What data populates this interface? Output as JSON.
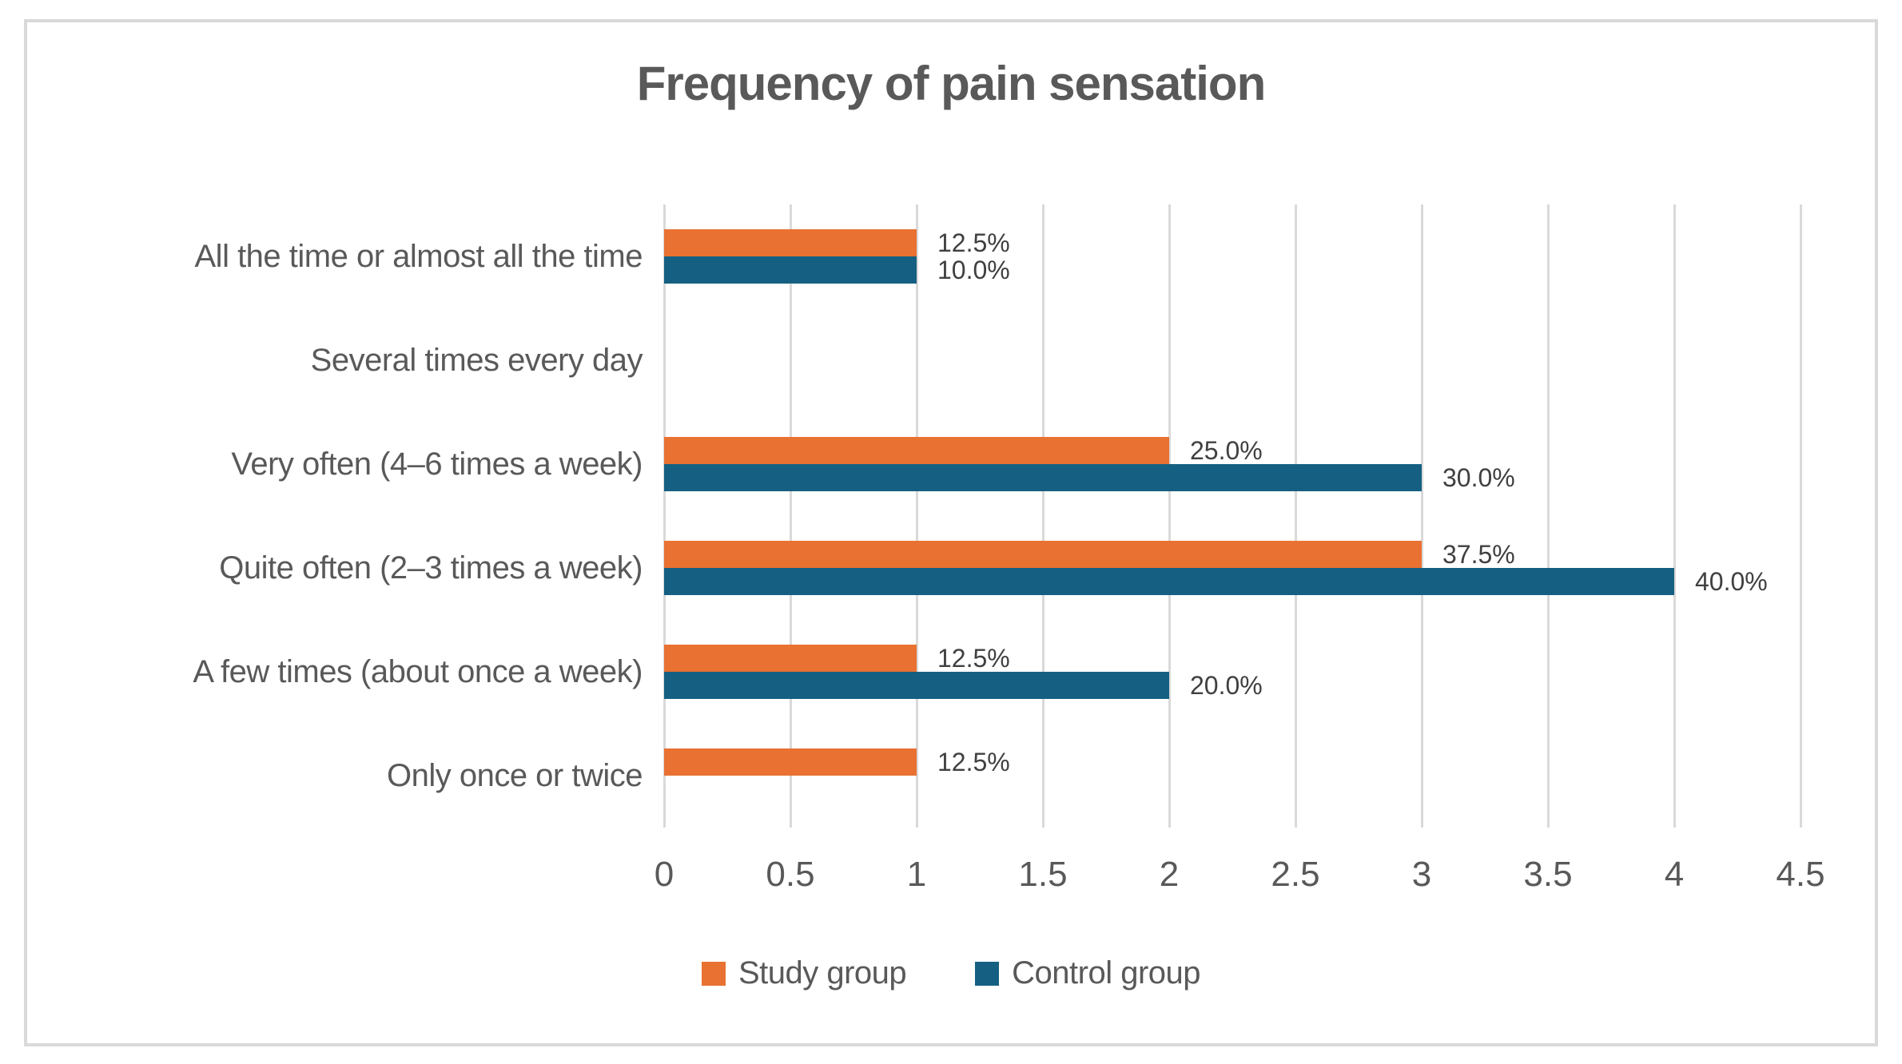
{
  "chart_data": {
    "type": "bar",
    "orientation": "horizontal",
    "title": "Frequency of pain sensation",
    "categories": [
      "All the time or almost all the time",
      "Several times every day",
      "Very often (4–6 times a week)",
      "Quite often (2–3 times a week)",
      "A few times (about once a week)",
      "Only once or twice"
    ],
    "series": [
      {
        "name": "Study group",
        "color": "#E97132",
        "values": [
          1,
          0,
          2,
          3,
          1,
          1
        ],
        "data_labels": [
          "12.5%",
          "",
          "25.0%",
          "37.5%",
          "12.5%",
          "12.5%"
        ]
      },
      {
        "name": "Control group",
        "color": "#156082",
        "values": [
          1,
          0,
          3,
          4,
          2,
          0
        ],
        "data_labels": [
          "10.0%",
          "",
          "30.0%",
          "40.0%",
          "20.0%",
          ""
        ]
      }
    ],
    "x_axis": {
      "min": 0,
      "max": 4.5,
      "tick_step": 0.5,
      "tick_labels": [
        "0",
        "0.5",
        "1",
        "1.5",
        "2",
        "2.5",
        "3",
        "3.5",
        "4",
        "4.5"
      ]
    },
    "grid": true,
    "legend_position": "bottom",
    "colors": {
      "study_group": "#E97132",
      "control_group": "#156082",
      "gridline": "#D9D9D9",
      "chart_border": "#D9D9D9",
      "title_text": "#595959",
      "axis_text": "#595959",
      "data_label_text": "#404040"
    }
  }
}
